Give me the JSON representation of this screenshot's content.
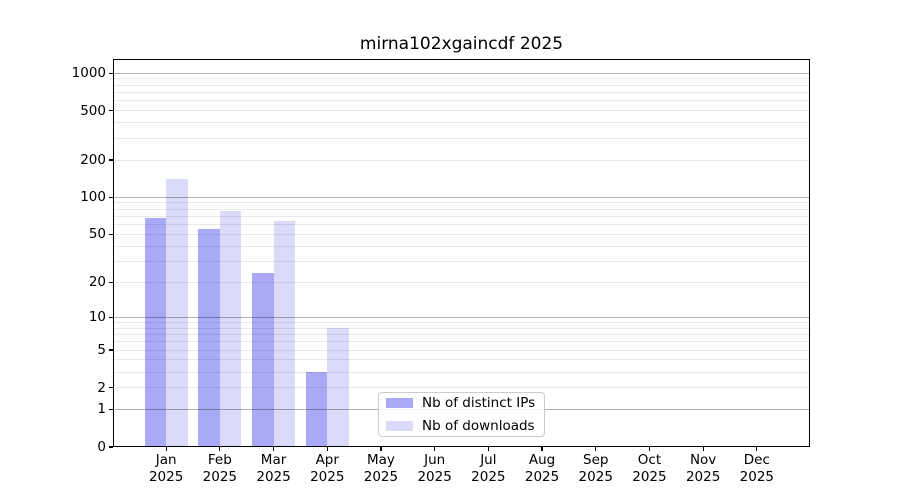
{
  "chart_data": {
    "type": "bar",
    "title": "mirna102xgaincdf 2025",
    "y_scale": "log10(1+x)",
    "y_ticks": [
      0,
      1,
      2,
      5,
      10,
      20,
      50,
      100,
      200,
      500,
      1000
    ],
    "y_top_value": 1300,
    "year": "2025",
    "categories": [
      "Jan",
      "Feb",
      "Mar",
      "Apr",
      "May",
      "Jun",
      "Jul",
      "Aug",
      "Sep",
      "Oct",
      "Nov",
      "Dec"
    ],
    "series": [
      {
        "name": "Nb of distinct IPs",
        "color": "#a9a9f6",
        "values": [
          68,
          55,
          24,
          3,
          0,
          0,
          0,
          0,
          0,
          0,
          0,
          0
        ]
      },
      {
        "name": "Nb of downloads",
        "color": "#dbdbf9",
        "values": [
          140,
          78,
          64,
          8,
          0,
          0,
          0,
          0,
          0,
          0,
          0,
          0
        ]
      }
    ],
    "legend": {
      "position": "lower center",
      "items": [
        "Nb of distinct IPs",
        "Nb of downloads"
      ]
    },
    "grid": {
      "major_values": [
        1,
        10,
        100,
        1000
      ],
      "minor_values": [
        2,
        3,
        4,
        5,
        6,
        7,
        8,
        9,
        20,
        30,
        40,
        50,
        60,
        70,
        80,
        90,
        200,
        300,
        400,
        500,
        600,
        700,
        800,
        900
      ],
      "major_color": "rgba(0,0,0,0.30)",
      "minor_color": "rgba(0,0,0,0.085)"
    },
    "axis_color": "#000000",
    "background": "#ffffff"
  }
}
